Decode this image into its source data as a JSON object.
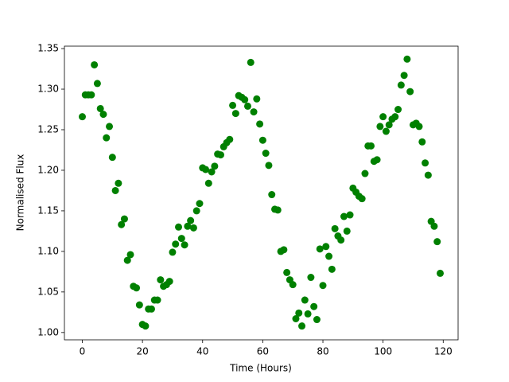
{
  "chart_data": {
    "type": "scatter",
    "xlabel": "Time (Hours)",
    "ylabel": "Normalised Flux",
    "color": "#008000",
    "x": [
      0,
      1,
      2,
      3,
      4,
      5,
      6,
      7,
      8,
      9,
      10,
      11,
      12,
      13,
      14,
      15,
      16,
      17,
      18,
      19,
      20,
      21,
      22,
      23,
      24,
      25,
      26,
      27,
      28,
      29,
      30,
      31,
      32,
      33,
      34,
      35,
      36,
      37,
      38,
      39,
      40,
      41,
      42,
      43,
      44,
      45,
      46,
      47,
      48,
      49,
      50,
      51,
      52,
      53,
      54,
      55,
      56,
      57,
      58,
      59,
      60,
      61,
      62,
      63,
      64,
      65,
      66,
      67,
      68,
      69,
      70,
      71,
      72,
      73,
      74,
      75,
      76,
      77,
      78,
      79,
      80,
      81,
      82,
      83,
      84,
      85,
      86,
      87,
      88,
      89,
      90,
      91,
      92,
      93,
      94,
      95,
      96,
      97,
      98,
      99,
      100,
      101,
      102,
      103,
      104,
      105,
      106,
      107,
      108,
      109,
      110,
      111,
      112,
      113,
      114,
      115,
      116,
      117,
      118,
      119
    ],
    "values": [
      1.266,
      1.293,
      1.293,
      1.293,
      1.33,
      1.307,
      1.276,
      1.269,
      1.24,
      1.254,
      1.216,
      1.175,
      1.184,
      1.133,
      1.14,
      1.089,
      1.096,
      1.057,
      1.055,
      1.034,
      1.01,
      1.008,
      1.029,
      1.029,
      1.04,
      1.04,
      1.065,
      1.057,
      1.059,
      1.063,
      1.099,
      1.109,
      1.13,
      1.116,
      1.108,
      1.131,
      1.138,
      1.129,
      1.15,
      1.159,
      1.203,
      1.201,
      1.184,
      1.198,
      1.205,
      1.22,
      1.219,
      1.229,
      1.234,
      1.238,
      1.28,
      1.27,
      1.292,
      1.29,
      1.287,
      1.279,
      1.333,
      1.272,
      1.288,
      1.257,
      1.237,
      1.221,
      1.206,
      1.17,
      1.152,
      1.151,
      1.1,
      1.102,
      1.074,
      1.065,
      1.059,
      1.017,
      1.024,
      1.008,
      1.04,
      1.023,
      1.068,
      1.032,
      1.016,
      1.103,
      1.058,
      1.106,
      1.094,
      1.078,
      1.128,
      1.119,
      1.114,
      1.143,
      1.125,
      1.145,
      1.178,
      1.173,
      1.168,
      1.165,
      1.196,
      1.23,
      1.23,
      1.211,
      1.213,
      1.254,
      1.266,
      1.248,
      1.256,
      1.263,
      1.266,
      1.275,
      1.305,
      1.317,
      1.337,
      1.297,
      1.256,
      1.258,
      1.254,
      1.235,
      1.209,
      1.194,
      1.137,
      1.131,
      1.112,
      1.073
    ],
    "xlim": [
      -5.95,
      124.95
    ],
    "ylim": [
      0.991,
      1.353
    ],
    "xticks": [
      0,
      20,
      40,
      60,
      80,
      100,
      120
    ],
    "yticks": [
      {
        "value": 1.0,
        "label": "1.00"
      },
      1.05,
      {
        "value": 1.1,
        "label": "1.10"
      },
      1.15,
      {
        "value": 1.2,
        "label": "1.20"
      },
      1.25,
      {
        "value": 1.3,
        "label": "1.30"
      },
      1.35
    ]
  }
}
